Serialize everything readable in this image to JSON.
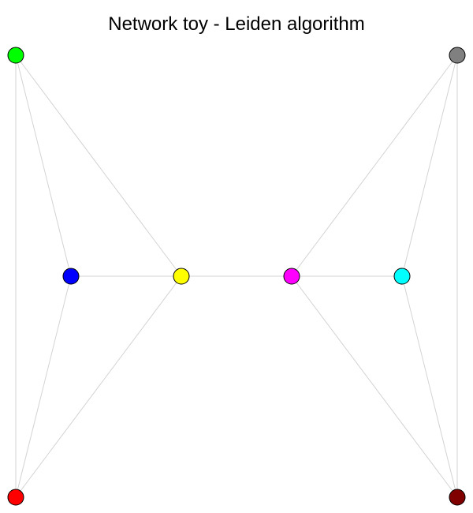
{
  "title": "Network toy - Leiden algorithm",
  "graph": {
    "nodes": [
      {
        "id": "green",
        "color": "#00ff00"
      },
      {
        "id": "gray",
        "color": "#808080"
      },
      {
        "id": "blue",
        "color": "#0000ff"
      },
      {
        "id": "yellow",
        "color": "#ffff00"
      },
      {
        "id": "magenta",
        "color": "#ff00ff"
      },
      {
        "id": "cyan",
        "color": "#00ffff"
      },
      {
        "id": "red",
        "color": "#ff0000"
      },
      {
        "id": "maroon",
        "color": "#800000"
      }
    ],
    "edges": [
      [
        "green",
        "red"
      ],
      [
        "green",
        "blue"
      ],
      [
        "green",
        "yellow"
      ],
      [
        "blue",
        "yellow"
      ],
      [
        "blue",
        "red"
      ],
      [
        "yellow",
        "red"
      ],
      [
        "yellow",
        "magenta"
      ],
      [
        "gray",
        "maroon"
      ],
      [
        "gray",
        "cyan"
      ],
      [
        "gray",
        "magenta"
      ],
      [
        "magenta",
        "cyan"
      ],
      [
        "magenta",
        "maroon"
      ],
      [
        "cyan",
        "maroon"
      ]
    ],
    "edge_color": "#d3d3d3",
    "node_outline_color": "#000000"
  }
}
